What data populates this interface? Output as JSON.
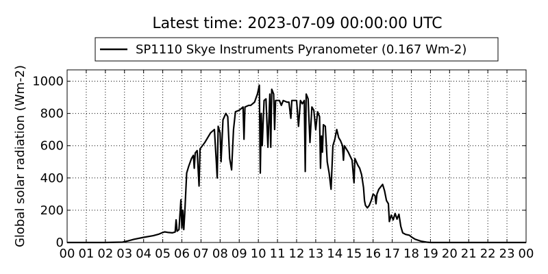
{
  "chart_data": {
    "type": "line",
    "title": "Latest time: 2023-07-09 00:00:00 UTC",
    "xlabel": "",
    "ylabel": "Global solar radiation (Wm-2)",
    "xlim": [
      0,
      24
    ],
    "ylim": [
      0,
      1070
    ],
    "grid": true,
    "legend_position": "top-center",
    "x_tick_labels": [
      "00",
      "01",
      "02",
      "03",
      "04",
      "05",
      "06",
      "07",
      "08",
      "09",
      "10",
      "11",
      "12",
      "13",
      "14",
      "15",
      "16",
      "17",
      "18",
      "19",
      "20",
      "21",
      "22",
      "23",
      "00"
    ],
    "y_ticks": [
      0,
      200,
      400,
      600,
      800,
      1000
    ],
    "series": [
      {
        "name": "SP1110 Skye Instruments Pyranometer (0.167 Wm-2)",
        "color": "#000000",
        "points": [
          [
            0,
            0
          ],
          [
            1,
            0
          ],
          [
            2,
            0
          ],
          [
            2.9,
            2
          ],
          [
            3.2,
            10
          ],
          [
            3.5,
            20
          ],
          [
            4,
            32
          ],
          [
            4.5,
            42
          ],
          [
            4.8,
            52
          ],
          [
            5,
            62
          ],
          [
            5.1,
            66
          ],
          [
            5.3,
            62
          ],
          [
            5.5,
            60
          ],
          [
            5.65,
            65
          ],
          [
            5.7,
            140
          ],
          [
            5.75,
            70
          ],
          [
            5.85,
            80
          ],
          [
            5.95,
            265
          ],
          [
            6.0,
            90
          ],
          [
            6.05,
            200
          ],
          [
            6.1,
            80
          ],
          [
            6.15,
            180
          ],
          [
            6.25,
            430
          ],
          [
            6.35,
            470
          ],
          [
            6.5,
            520
          ],
          [
            6.6,
            540
          ],
          [
            6.65,
            460
          ],
          [
            6.7,
            555
          ],
          [
            6.8,
            570
          ],
          [
            6.9,
            350
          ],
          [
            6.95,
            580
          ],
          [
            7.2,
            620
          ],
          [
            7.5,
            680
          ],
          [
            7.7,
            700
          ],
          [
            7.8,
            500
          ],
          [
            7.85,
            400
          ],
          [
            7.9,
            720
          ],
          [
            8.0,
            680
          ],
          [
            8.05,
            500
          ],
          [
            8.15,
            760
          ],
          [
            8.3,
            800
          ],
          [
            8.4,
            780
          ],
          [
            8.5,
            520
          ],
          [
            8.6,
            450
          ],
          [
            8.7,
            700
          ],
          [
            8.8,
            810
          ],
          [
            9.0,
            820
          ],
          [
            9.2,
            840
          ],
          [
            9.25,
            640
          ],
          [
            9.3,
            840
          ],
          [
            9.5,
            850
          ],
          [
            9.6,
            850
          ],
          [
            9.8,
            870
          ],
          [
            9.95,
            920
          ],
          [
            10.05,
            975
          ],
          [
            10.1,
            430
          ],
          [
            10.15,
            800
          ],
          [
            10.2,
            600
          ],
          [
            10.3,
            880
          ],
          [
            10.4,
            890
          ],
          [
            10.5,
            590
          ],
          [
            10.6,
            920
          ],
          [
            10.65,
            590
          ],
          [
            10.7,
            950
          ],
          [
            10.8,
            920
          ],
          [
            10.85,
            700
          ],
          [
            10.9,
            880
          ],
          [
            11.0,
            880
          ],
          [
            11.1,
            880
          ],
          [
            11.2,
            850
          ],
          [
            11.3,
            880
          ],
          [
            11.5,
            870
          ],
          [
            11.6,
            870
          ],
          [
            11.7,
            770
          ],
          [
            11.75,
            880
          ],
          [
            12.0,
            880
          ],
          [
            12.1,
            720
          ],
          [
            12.2,
            880
          ],
          [
            12.3,
            860
          ],
          [
            12.4,
            880
          ],
          [
            12.45,
            440
          ],
          [
            12.5,
            920
          ],
          [
            12.6,
            890
          ],
          [
            12.7,
            620
          ],
          [
            12.8,
            840
          ],
          [
            12.9,
            820
          ],
          [
            13.0,
            700
          ],
          [
            13.1,
            810
          ],
          [
            13.2,
            780
          ],
          [
            13.25,
            460
          ],
          [
            13.3,
            660
          ],
          [
            13.35,
            560
          ],
          [
            13.4,
            730
          ],
          [
            13.5,
            720
          ],
          [
            13.6,
            500
          ],
          [
            13.7,
            430
          ],
          [
            13.8,
            330
          ],
          [
            13.9,
            600
          ],
          [
            14.0,
            640
          ],
          [
            14.1,
            700
          ],
          [
            14.2,
            650
          ],
          [
            14.3,
            630
          ],
          [
            14.4,
            600
          ],
          [
            14.45,
            510
          ],
          [
            14.5,
            600
          ],
          [
            14.7,
            560
          ],
          [
            14.9,
            510
          ],
          [
            15.0,
            370
          ],
          [
            15.05,
            520
          ],
          [
            15.2,
            480
          ],
          [
            15.3,
            460
          ],
          [
            15.4,
            420
          ],
          [
            15.5,
            340
          ],
          [
            15.55,
            260
          ],
          [
            15.6,
            230
          ],
          [
            15.7,
            215
          ],
          [
            15.8,
            230
          ],
          [
            15.9,
            260
          ],
          [
            16.0,
            300
          ],
          [
            16.1,
            290
          ],
          [
            16.15,
            240
          ],
          [
            16.2,
            300
          ],
          [
            16.3,
            330
          ],
          [
            16.5,
            360
          ],
          [
            16.6,
            320
          ],
          [
            16.7,
            260
          ],
          [
            16.8,
            240
          ],
          [
            16.85,
            130
          ],
          [
            16.95,
            170
          ],
          [
            17.05,
            140
          ],
          [
            17.15,
            180
          ],
          [
            17.25,
            145
          ],
          [
            17.35,
            175
          ],
          [
            17.45,
            100
          ],
          [
            17.55,
            60
          ],
          [
            17.7,
            50
          ],
          [
            17.9,
            45
          ],
          [
            18.0,
            35
          ],
          [
            18.2,
            20
          ],
          [
            18.5,
            8
          ],
          [
            18.8,
            2
          ],
          [
            19,
            0
          ],
          [
            20,
            0
          ],
          [
            24,
            0
          ]
        ]
      }
    ]
  }
}
